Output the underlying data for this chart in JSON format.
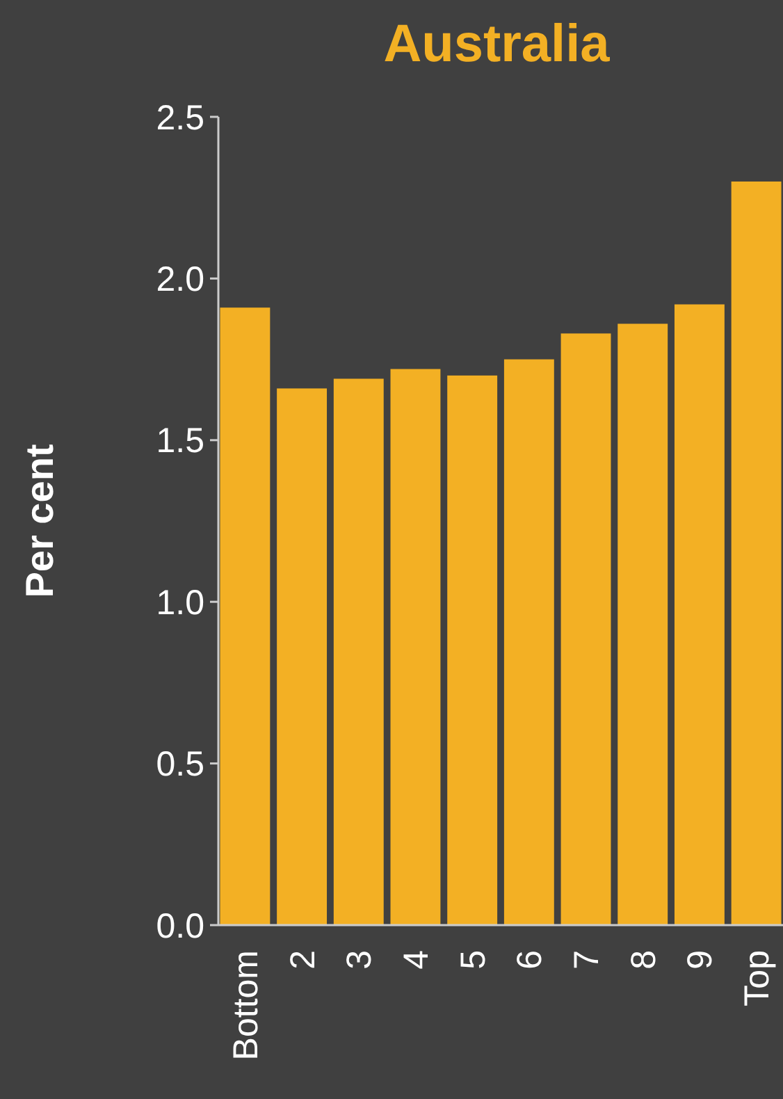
{
  "chart_data": {
    "type": "bar",
    "title": "Australia",
    "ylabel": "Per cent",
    "categories": [
      "Bottom",
      "2",
      "3",
      "4",
      "5",
      "6",
      "7",
      "8",
      "9",
      "Top"
    ],
    "values": [
      1.91,
      1.66,
      1.69,
      1.72,
      1.7,
      1.75,
      1.83,
      1.86,
      1.92,
      2.3
    ],
    "color": "#f3b024",
    "ylim": [
      0,
      2.5
    ],
    "yticks": [
      {
        "value": 0,
        "label": "0.0"
      },
      {
        "value": 0.5,
        "label": "0.5"
      },
      {
        "value": 1,
        "label": "1.0"
      },
      {
        "value": 1.5,
        "label": "1.5"
      },
      {
        "value": 2,
        "label": "2.0"
      },
      {
        "value": 2.5,
        "label": "2.5"
      }
    ],
    "grid": false
  }
}
